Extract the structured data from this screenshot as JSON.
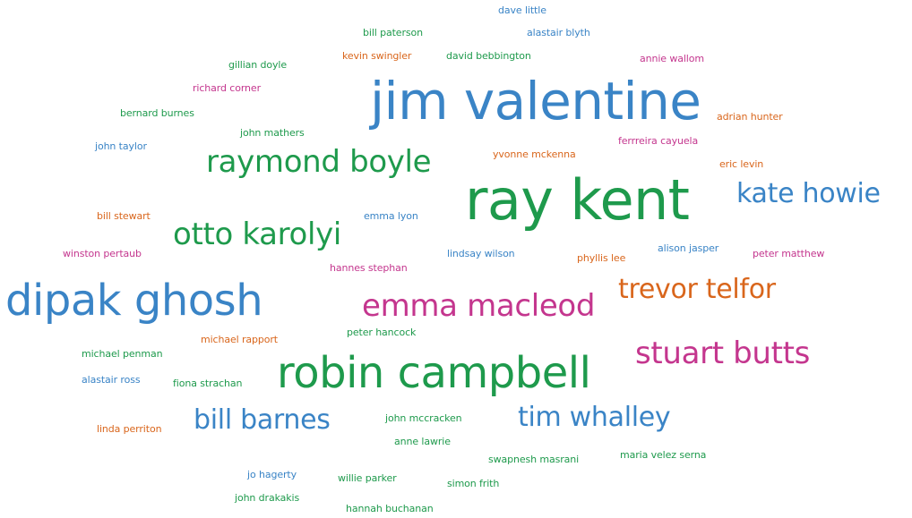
{
  "palette": {
    "green": "#1e9a4c",
    "blue": "#3a84c6",
    "pink": "#c4368e",
    "orange": "#d9661c"
  },
  "words": [
    {
      "text": "dave little",
      "color": "blue",
      "weight": 1
    },
    {
      "text": "bill paterson",
      "color": "green",
      "weight": 1
    },
    {
      "text": "alastair blyth",
      "color": "blue",
      "weight": 1
    },
    {
      "text": "kevin swingler",
      "color": "orange",
      "weight": 1
    },
    {
      "text": "david bebbington",
      "color": "green",
      "weight": 1
    },
    {
      "text": "annie wallom",
      "color": "pink",
      "weight": 1
    },
    {
      "text": "gillian doyle",
      "color": "green",
      "weight": 1
    },
    {
      "text": "richard corner",
      "color": "pink",
      "weight": 1
    },
    {
      "text": "jim valentine",
      "color": "blue",
      "weight": 5
    },
    {
      "text": "bernard burnes",
      "color": "green",
      "weight": 1
    },
    {
      "text": "adrian hunter",
      "color": "orange",
      "weight": 1
    },
    {
      "text": "john mathers",
      "color": "green",
      "weight": 1
    },
    {
      "text": "ferrreira cayuela",
      "color": "pink",
      "weight": 1
    },
    {
      "text": "john taylor",
      "color": "blue",
      "weight": 1
    },
    {
      "text": "yvonne mckenna",
      "color": "orange",
      "weight": 1
    },
    {
      "text": "raymond boyle",
      "color": "green",
      "weight": 3
    },
    {
      "text": "eric levin",
      "color": "orange",
      "weight": 1
    },
    {
      "text": "ray kent",
      "color": "green",
      "weight": 6
    },
    {
      "text": "kate howie",
      "color": "blue",
      "weight": 3
    },
    {
      "text": "bill stewart",
      "color": "orange",
      "weight": 1
    },
    {
      "text": "emma lyon",
      "color": "blue",
      "weight": 1
    },
    {
      "text": "otto karolyi",
      "color": "green",
      "weight": 3
    },
    {
      "text": "alison jasper",
      "color": "blue",
      "weight": 1
    },
    {
      "text": "winston pertaub",
      "color": "pink",
      "weight": 1
    },
    {
      "text": "lindsay wilson",
      "color": "blue",
      "weight": 1
    },
    {
      "text": "phyllis lee",
      "color": "orange",
      "weight": 1
    },
    {
      "text": "peter matthew",
      "color": "pink",
      "weight": 1
    },
    {
      "text": "hannes stephan",
      "color": "pink",
      "weight": 1
    },
    {
      "text": "dipak ghosh",
      "color": "blue",
      "weight": 5
    },
    {
      "text": "trevor telfor",
      "color": "orange",
      "weight": 3
    },
    {
      "text": "emma macleod",
      "color": "pink",
      "weight": 3
    },
    {
      "text": "peter hancock",
      "color": "green",
      "weight": 1
    },
    {
      "text": "michael rapport",
      "color": "orange",
      "weight": 1
    },
    {
      "text": "michael penman",
      "color": "green",
      "weight": 1
    },
    {
      "text": "stuart butts",
      "color": "pink",
      "weight": 3
    },
    {
      "text": "robin campbell",
      "color": "green",
      "weight": 4
    },
    {
      "text": "alastair ross",
      "color": "blue",
      "weight": 1
    },
    {
      "text": "fiona strachan",
      "color": "green",
      "weight": 1
    },
    {
      "text": "bill barnes",
      "color": "blue",
      "weight": 2
    },
    {
      "text": "tim whalley",
      "color": "blue",
      "weight": 2
    },
    {
      "text": "john mccracken",
      "color": "green",
      "weight": 1
    },
    {
      "text": "linda perriton",
      "color": "orange",
      "weight": 1
    },
    {
      "text": "anne lawrie",
      "color": "green",
      "weight": 1
    },
    {
      "text": "maria velez serna",
      "color": "green",
      "weight": 1
    },
    {
      "text": "swapnesh masrani",
      "color": "green",
      "weight": 1
    },
    {
      "text": "jo hagerty",
      "color": "blue",
      "weight": 1
    },
    {
      "text": "willie parker",
      "color": "green",
      "weight": 1
    },
    {
      "text": "simon frith",
      "color": "green",
      "weight": 1
    },
    {
      "text": "john drakakis",
      "color": "green",
      "weight": 1
    },
    {
      "text": "hannah buchanan",
      "color": "green",
      "weight": 1
    }
  ]
}
